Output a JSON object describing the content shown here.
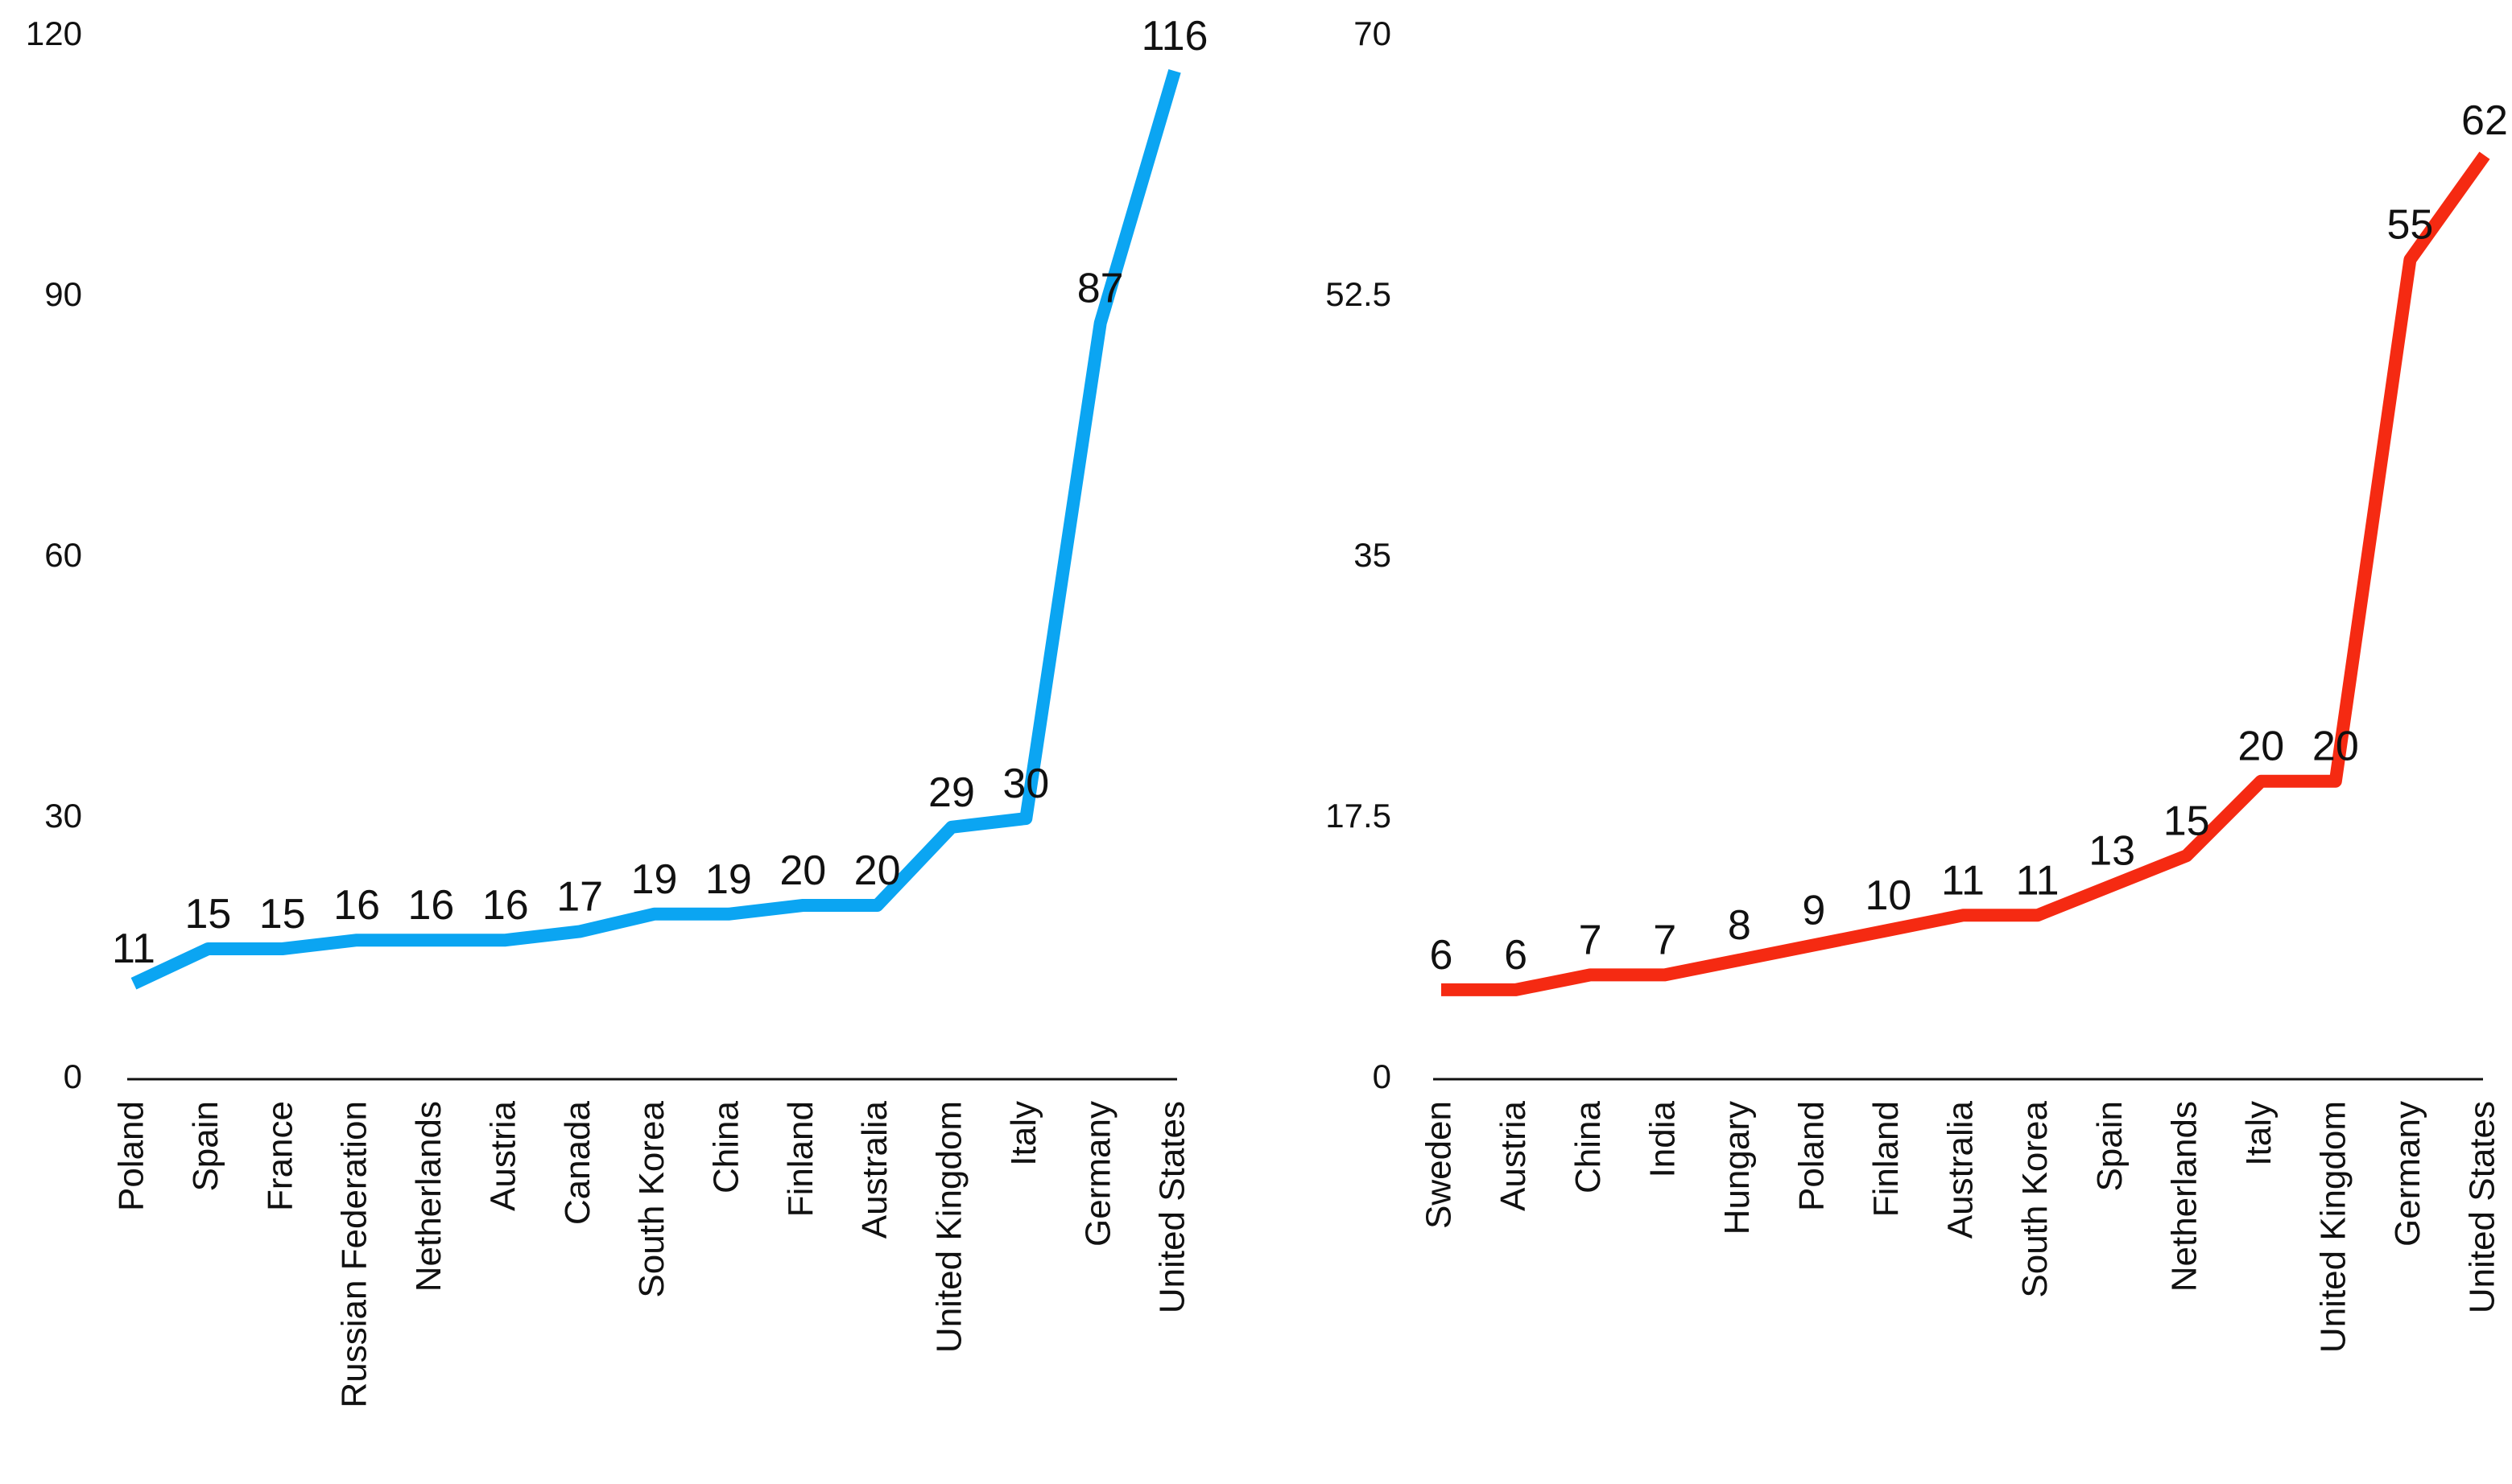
{
  "chart_data": [
    {
      "type": "line",
      "color": "#0BA5F2",
      "ylim": [
        0,
        120
      ],
      "yticks": [
        "0",
        "30",
        "60",
        "90",
        "120"
      ],
      "grid": false,
      "categories": [
        "Poland",
        "Spain",
        "France",
        "Russian Federation",
        "Netherlands",
        "Austria",
        "Canada",
        "South Korea",
        "China",
        "Finland",
        "Australia",
        "United Kingdom",
        "Italy",
        "Germany",
        "United States"
      ],
      "values": [
        11,
        15,
        15,
        16,
        16,
        16,
        17,
        19,
        19,
        20,
        20,
        29,
        30,
        87,
        116
      ]
    },
    {
      "type": "line",
      "color": "#F52A12",
      "ylim": [
        0,
        70
      ],
      "yticks": [
        "0",
        "17.5",
        "35",
        "52.5",
        "70"
      ],
      "grid": false,
      "categories": [
        "Sweden",
        "Austria",
        "China",
        "India",
        "Hungary",
        "Poland",
        "Finland",
        "Australia",
        "South Korea",
        "Spain",
        "Netherlands",
        "Italy",
        "United Kingdom",
        "Germany",
        "United States"
      ],
      "values": [
        6,
        6,
        7,
        7,
        8,
        9,
        10,
        11,
        11,
        13,
        15,
        20,
        20,
        55,
        62
      ]
    }
  ]
}
